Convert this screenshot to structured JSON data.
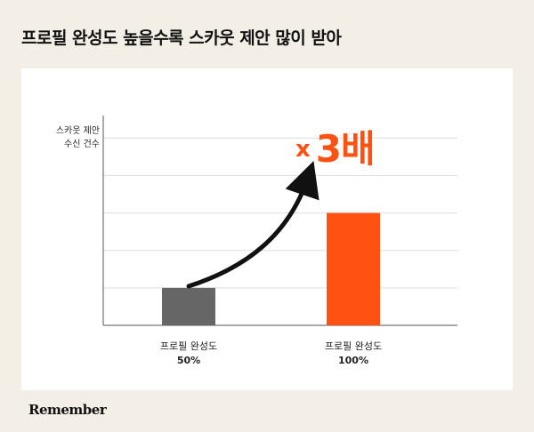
{
  "headline": "프로필 완성도 높을수록 스카웃 제안 많이 받아",
  "brand": "Remember",
  "chart_data": {
    "type": "bar",
    "ylabel_lines": [
      "스카웃 제안",
      "수신 건수"
    ],
    "categories": [
      {
        "name": "프로필 완성도",
        "sub": "50%"
      },
      {
        "name": "프로필 완성도",
        "sub": "100%"
      }
    ],
    "values": [
      1,
      3
    ],
    "ylim": [
      0,
      5.6
    ],
    "grid": true,
    "annotation": {
      "prefix": "x",
      "text": "3배"
    },
    "colors": {
      "bar_1": "#666666",
      "bar_2": "#ff5212",
      "accent": "#ff5212",
      "grid": "#dddddd"
    }
  }
}
